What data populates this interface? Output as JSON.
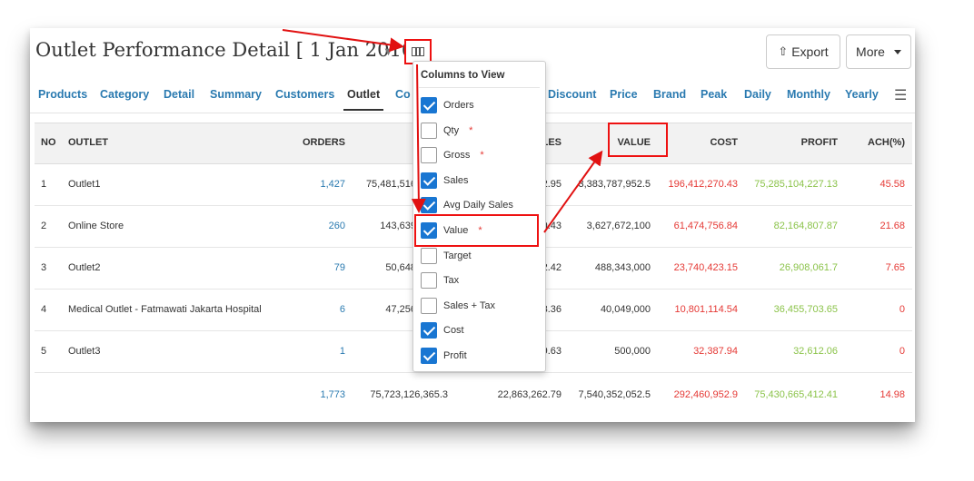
{
  "page": {
    "title": "Outlet Performance Detail [ 1 Jan 2016",
    "export_label": "Export",
    "more_label": "More"
  },
  "tabs": [
    "Products",
    "Category",
    "Detail",
    "Summary",
    "Customers",
    "Outlet",
    "Co",
    "Discount",
    "Price",
    "Brand",
    "Peak",
    "Daily",
    "Monthly",
    "Yearly"
  ],
  "active_tab": "Outlet",
  "table": {
    "headers": {
      "no": "NO",
      "outlet": "OUTLET",
      "orders": "ORDERS",
      "sales": "LES",
      "value": "VALUE",
      "cost": "COST",
      "profit": "PROFIT",
      "ach": "ACH(%)"
    },
    "rows": [
      {
        "no": "1",
        "outlet": "Outlet1",
        "orders": "1,427",
        "gross": "75,481,516",
        "sales": "2.95",
        "value": "3,383,787,952.5",
        "cost": "196,412,270.43",
        "profit": "75,285,104,227.13",
        "ach": "45.58"
      },
      {
        "no": "2",
        "outlet": "Online Store",
        "orders": "260",
        "gross": "143,639",
        "sales": "9.43",
        "value": "3,627,672,100",
        "cost": "61,474,756.84",
        "profit": "82,164,807.87",
        "ach": "21.68"
      },
      {
        "no": "3",
        "outlet": "Outlet2",
        "orders": "79",
        "gross": "50,648",
        "sales": "2.42",
        "value": "488,343,000",
        "cost": "23,740,423.15",
        "profit": "26,908,061.7",
        "ach": "7.65"
      },
      {
        "no": "4",
        "outlet": "Medical Outlet - Fatmawati Jakarta Hospital",
        "orders": "6",
        "gross": "47,256",
        "sales": "3.36",
        "value": "40,049,000",
        "cost": "10,801,114.54",
        "profit": "36,455,703.65",
        "ach": "0"
      },
      {
        "no": "5",
        "outlet": "Outlet3",
        "orders": "1",
        "gross": "",
        "sales": "9.63",
        "value": "500,000",
        "cost": "32,387.94",
        "profit": "32,612.06",
        "ach": "0"
      }
    ],
    "totals": {
      "orders": "1,773",
      "gross": "75,723,126,365.3",
      "sales": "22,863,262.79",
      "value": "7,540,352,052.5",
      "cost": "292,460,952.9",
      "profit": "75,430,665,412.41",
      "ach": "14.98"
    }
  },
  "columns_dropdown": {
    "title": "Columns to View",
    "options": [
      {
        "label": "Orders",
        "checked": true,
        "star": ""
      },
      {
        "label": "Qty",
        "checked": false,
        "star": "*"
      },
      {
        "label": "Gross",
        "checked": false,
        "star": "*"
      },
      {
        "label": "Sales",
        "checked": true,
        "star": ""
      },
      {
        "label": "Avg Daily Sales",
        "checked": true,
        "star": ""
      },
      {
        "label": "Value",
        "checked": true,
        "star": "*"
      },
      {
        "label": "Target",
        "checked": false,
        "star": ""
      },
      {
        "label": "Tax",
        "checked": false,
        "star": ""
      },
      {
        "label": "Sales + Tax",
        "checked": false,
        "star": ""
      },
      {
        "label": "Cost",
        "checked": true,
        "star": ""
      },
      {
        "label": "Profit",
        "checked": true,
        "star": ""
      }
    ]
  },
  "colors": {
    "link": "#2a7ab0",
    "negative": "#e53935",
    "positive": "#8bc34a",
    "annotation": "#e11111",
    "checkbox": "#1976d2"
  }
}
